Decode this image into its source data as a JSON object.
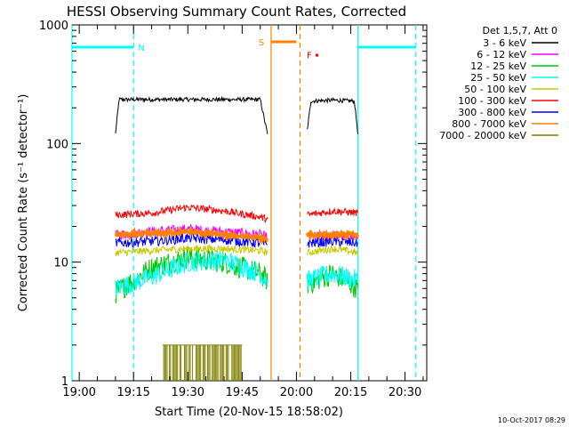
{
  "chart_data": {
    "type": "line",
    "title": "HESSI Observing Summary Count Rates, Corrected",
    "xlabel": "Start Time (20-Nov-15 18:58:02)",
    "ylabel": "Corrected Count Rate (s⁻¹ detector⁻¹)",
    "y_scale": "log",
    "ylim": [
      1,
      1000
    ],
    "y_ticks": [
      {
        "value": 1,
        "label": "1"
      },
      {
        "value": 10,
        "label": "10"
      },
      {
        "value": 100,
        "label": "100"
      },
      {
        "value": 1000,
        "label": "1000"
      }
    ],
    "xlim": [
      "18:58",
      "20:36"
    ],
    "x_ticks": [
      "19:00",
      "19:15",
      "19:30",
      "19:45",
      "20:00",
      "20:15",
      "20:30"
    ],
    "legend_header": "Det 1,5,7, Att 0",
    "legend_placement": "right",
    "footer_date": "10-Oct-2017 08:29",
    "data_gaps": [
      [
        "18:58",
        "19:10"
      ],
      [
        "19:53",
        "20:02"
      ],
      [
        "20:18",
        "20:36"
      ]
    ],
    "series": [
      {
        "name": "3 - 6 keV",
        "color": "#000000",
        "segments": [
          {
            "x": [
              "19:10",
              "19:11",
              "19:20",
              "19:30",
              "19:40",
              "19:50",
              "19:52"
            ],
            "y": [
              120,
              235,
              235,
              235,
              235,
              235,
              120
            ]
          },
          {
            "x": [
              "20:03",
              "20:04",
              "20:10",
              "20:16",
              "20:17"
            ],
            "y": [
              130,
              228,
              232,
              228,
              120
            ]
          }
        ]
      },
      {
        "name": "6 - 12 keV",
        "color": "#ff00ff",
        "segments": [
          {
            "x": [
              "19:10",
              "19:20",
              "19:30",
              "19:40",
              "19:50",
              "19:52"
            ],
            "y": [
              17,
              18,
              19,
              18,
              17,
              16
            ]
          },
          {
            "x": [
              "20:03",
              "20:10",
              "20:17"
            ],
            "y": [
              16,
              17,
              16
            ]
          }
        ]
      },
      {
        "name": "12 - 25 keV",
        "color": "#00c800",
        "segments": [
          {
            "x": [
              "19:10",
              "19:20",
              "19:30",
              "19:40",
              "19:50",
              "19:52"
            ],
            "y": [
              5.5,
              9,
              11,
              10,
              8,
              7
            ]
          },
          {
            "x": [
              "20:03",
              "20:10",
              "20:17"
            ],
            "y": [
              6.5,
              8,
              6
            ]
          }
        ]
      },
      {
        "name": "25 - 50 keV",
        "color": "#00ffff",
        "segments": [
          {
            "x": [
              "19:10",
              "19:20",
              "19:30",
              "19:40",
              "19:50",
              "19:52"
            ],
            "y": [
              6,
              7.5,
              10,
              10.5,
              8,
              7
            ]
          },
          {
            "x": [
              "20:03",
              "20:10",
              "20:17"
            ],
            "y": [
              7,
              8,
              7
            ]
          }
        ]
      },
      {
        "name": "50 - 100 keV",
        "color": "#c8c800",
        "segments": [
          {
            "x": [
              "19:10",
              "19:20",
              "19:30",
              "19:40",
              "19:50",
              "19:52"
            ],
            "y": [
              12,
              12.5,
              13,
              13,
              12.5,
              12
            ]
          },
          {
            "x": [
              "20:03",
              "20:10",
              "20:17"
            ],
            "y": [
              12,
              13,
              12
            ]
          }
        ]
      },
      {
        "name": "100 - 300 keV",
        "color": "#ff0000",
        "segments": [
          {
            "x": [
              "19:10",
              "19:20",
              "19:30",
              "19:40",
              "19:50",
              "19:52"
            ],
            "y": [
              25,
              26,
              29,
              27,
              24,
              23
            ]
          },
          {
            "x": [
              "20:03",
              "20:10",
              "20:17"
            ],
            "y": [
              25,
              27,
              26
            ]
          }
        ]
      },
      {
        "name": "300 - 800 keV",
        "color": "#0000ff",
        "segments": [
          {
            "x": [
              "19:10",
              "19:20",
              "19:30",
              "19:40",
              "19:50",
              "19:52"
            ],
            "y": [
              14.5,
              15,
              16,
              15.5,
              14.5,
              14
            ]
          },
          {
            "x": [
              "20:03",
              "20:10",
              "20:17"
            ],
            "y": [
              14.5,
              15,
              14.5
            ]
          }
        ]
      },
      {
        "name": "800 - 7000 keV",
        "color": "#ff8000",
        "segments": [
          {
            "x": [
              "19:10",
              "19:20",
              "19:30",
              "19:40",
              "19:50",
              "19:52"
            ],
            "y": [
              17,
              17.5,
              18,
              17,
              16,
              15.5
            ]
          },
          {
            "x": [
              "20:03",
              "20:10",
              "20:17"
            ],
            "y": [
              17,
              17,
              17
            ]
          }
        ]
      },
      {
        "name": "7000 - 20000 keV",
        "color": "#808000",
        "segments": [
          {
            "x": [
              "19:23",
              "19:30",
              "19:38",
              "19:45"
            ],
            "y": [
              2,
              2,
              2,
              2
            ]
          }
        ]
      }
    ],
    "markers": [
      {
        "label": "N",
        "color": "#00ffff",
        "y": 650,
        "bars": [
          [
            "18:58",
            "19:15"
          ],
          [
            "20:17",
            "20:33"
          ]
        ],
        "vlines": [
          {
            "x": "18:58",
            "style": "solid"
          },
          {
            "x": "19:15",
            "style": "dashed"
          },
          {
            "x": "20:17",
            "style": "solid"
          },
          {
            "x": "20:33",
            "style": "dashed"
          }
        ]
      },
      {
        "label": "S",
        "color": "#ff8000",
        "y": 720,
        "bars": [
          [
            "19:53",
            "20:00"
          ]
        ],
        "vlines": [
          {
            "x": "19:53",
            "style": "solid"
          },
          {
            "x": "20:01",
            "style": "dashed"
          }
        ]
      },
      {
        "label": "F",
        "color": "#ff0000",
        "y": 560,
        "bars": [],
        "vlines": []
      }
    ]
  }
}
